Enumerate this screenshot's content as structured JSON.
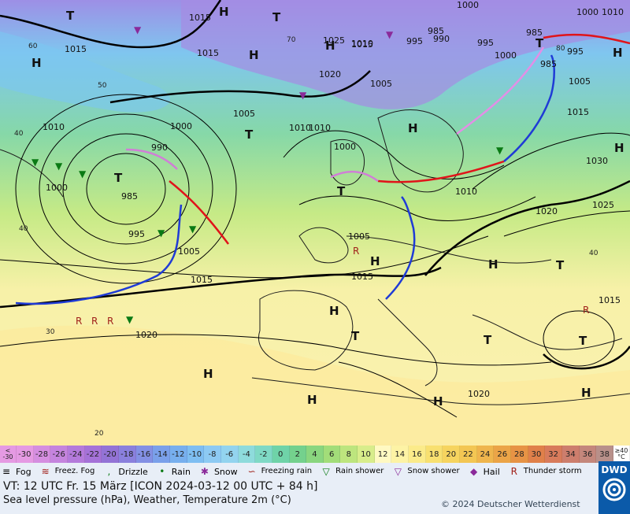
{
  "map": {
    "highs_lows": [
      {
        "label": "H"
      },
      {
        "label": "T"
      },
      {
        "label": "H"
      },
      {
        "label": "T"
      },
      {
        "label": "H"
      },
      {
        "label": "H"
      },
      {
        "label": "T"
      },
      {
        "label": "T"
      },
      {
        "label": "H"
      },
      {
        "label": "H"
      },
      {
        "label": "T"
      },
      {
        "label": "H"
      },
      {
        "label": "H"
      },
      {
        "label": "H"
      },
      {
        "label": "T"
      },
      {
        "label": "T"
      },
      {
        "label": "H"
      },
      {
        "label": "T"
      },
      {
        "label": "T"
      },
      {
        "label": "H"
      },
      {
        "label": "H"
      },
      {
        "label": "H"
      },
      {
        "label": "T"
      },
      {
        "label": "H"
      }
    ],
    "isobar_labels": [
      "1015",
      "1015",
      "1015",
      "1025",
      "1015",
      "1000",
      "1010",
      "1020",
      "1005",
      "1000",
      "985",
      "990",
      "1010",
      "1005",
      "1010",
      "1000",
      "995",
      "1000",
      "985",
      "995",
      "1005",
      "1015",
      "1020",
      "985",
      "995",
      "995",
      "1010",
      "1020",
      "1000",
      "1030",
      "1015",
      "1025",
      "1005",
      "1015",
      "1015",
      "1020",
      "1005",
      "990",
      "1000",
      "1010",
      "1010",
      "985"
    ],
    "temp_labels": [
      "60",
      "50",
      "40",
      "40",
      "30",
      "20",
      "70",
      "80",
      "40"
    ]
  },
  "scale": {
    "first_top": "<",
    "first_bottom": "-30",
    "values": [
      "-30",
      "-28",
      "-26",
      "-24",
      "-22",
      "-20",
      "-18",
      "-16",
      "-14",
      "-12",
      "-10",
      "-8",
      "-6",
      "-4",
      "-2",
      "0",
      "2",
      "4",
      "6",
      "8",
      "10",
      "12",
      "14",
      "16",
      "18",
      "20",
      "22",
      "24",
      "26",
      "28",
      "30",
      "32",
      "34",
      "36",
      "38"
    ],
    "colors": [
      "#e59ae3",
      "#d58ee0",
      "#c584de",
      "#b47adb",
      "#a572d8",
      "#9373d6",
      "#8a80dd",
      "#8390e4",
      "#7aa0ea",
      "#77afee",
      "#7ebef2",
      "#8dcaf3",
      "#93d4ef",
      "#8edbdc",
      "#7fd9c5",
      "#6fd3a8",
      "#74d18d",
      "#8ad67f",
      "#a2dd79",
      "#bde57e",
      "#d8ed8b",
      "#fff9c2",
      "#fdf3a5",
      "#fbeb8a",
      "#f8e070",
      "#f6d45f",
      "#f3c653",
      "#efb54d",
      "#eba447",
      "#e79345",
      "#e0804a",
      "#d87b5b",
      "#cd7e6d",
      "#c4877c",
      "#b8908a"
    ],
    "last_top": "≥40",
    "last_bottom": "°C"
  },
  "legend": [
    {
      "label": "Fog",
      "icon": "fog-icon"
    },
    {
      "label": "Freez. Fog",
      "icon": "freezing-fog-icon"
    },
    {
      "label": "Drizzle",
      "icon": "drizzle-icon"
    },
    {
      "label": "Rain",
      "icon": "rain-icon"
    },
    {
      "label": "Snow",
      "icon": "snow-icon"
    },
    {
      "label": "Freezing rain",
      "icon": "freezing-rain-icon"
    },
    {
      "label": "Rain shower",
      "icon": "rain-shower-icon"
    },
    {
      "label": "Snow shower",
      "icon": "snow-shower-icon"
    },
    {
      "label": "Hail",
      "icon": "hail-icon"
    },
    {
      "label": "Thunder storm",
      "icon": "thunderstorm-icon"
    }
  ],
  "info": {
    "line1": "VT: 12 UTC Fr.  15 März [ICON 2024-03-12  00 UTC + 84 h]",
    "line2": "Sea level pressure (hPa), Weather, Temperature 2m (°C)",
    "copyright": "© 2024 Deutscher Wetterdienst",
    "logo": "DWD"
  }
}
